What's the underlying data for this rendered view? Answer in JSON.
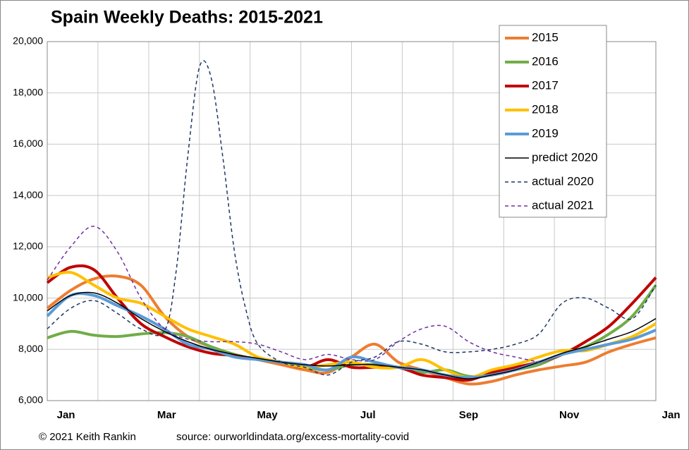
{
  "chart_data": {
    "type": "line",
    "title": "Spain Weekly Deaths: 2015-2021",
    "footer_left": "© 2021 Keith Rankin",
    "footer_right": "source:  ourworldindata.org/excess-mortality-covid",
    "x": [
      0,
      2,
      4,
      6,
      8,
      10,
      12,
      14,
      16,
      18,
      20,
      22,
      24,
      26,
      28,
      30,
      32,
      34,
      36,
      38,
      40,
      42,
      44,
      46,
      48,
      50,
      52
    ],
    "xlim": [
      0,
      52
    ],
    "xticks": [
      {
        "value": 1.6,
        "label": "Jan"
      },
      {
        "value": 10.2,
        "label": "Mar"
      },
      {
        "value": 18.8,
        "label": "May"
      },
      {
        "value": 27.4,
        "label": "Jul"
      },
      {
        "value": 36.0,
        "label": "Sep"
      },
      {
        "value": 44.6,
        "label": "Nov"
      },
      {
        "value": 53.3,
        "label": "Jan"
      }
    ],
    "xgrid": [
      4.33,
      8.67,
      13,
      17.33,
      21.67,
      26,
      30.33,
      34.67,
      39,
      43.33,
      47.67
    ],
    "ylim": [
      6000,
      20000
    ],
    "yticks": [
      {
        "value": 6000,
        "label": "6,000"
      },
      {
        "value": 8000,
        "label": "8,000"
      },
      {
        "value": 10000,
        "label": "10,000"
      },
      {
        "value": 12000,
        "label": "12,000"
      },
      {
        "value": 14000,
        "label": "14,000"
      },
      {
        "value": 16000,
        "label": "16,000"
      },
      {
        "value": 18000,
        "label": "18,000"
      },
      {
        "value": 20000,
        "label": "20,000"
      }
    ],
    "grid": true,
    "legend": "top-right",
    "series": [
      {
        "name": "2015",
        "color": "#ed7d31",
        "width": 4,
        "values": [
          9600,
          10300,
          10750,
          10850,
          10500,
          9300,
          8500,
          8100,
          7800,
          7600,
          7400,
          7200,
          7100,
          7700,
          8200,
          7500,
          7200,
          6900,
          6650,
          6750,
          7000,
          7200,
          7350,
          7500,
          7900,
          8200,
          8450
        ]
      },
      {
        "name": "2016",
        "color": "#70ad47",
        "width": 4,
        "values": [
          8450,
          8700,
          8550,
          8500,
          8600,
          8650,
          8500,
          8100,
          7800,
          7600,
          7500,
          7300,
          7200,
          7400,
          7400,
          7300,
          7100,
          7200,
          6950,
          7000,
          7200,
          7400,
          7800,
          8100,
          8600,
          9300,
          10500
        ]
      },
      {
        "name": "2017",
        "color": "#c00000",
        "width": 4,
        "values": [
          10600,
          11200,
          11100,
          10000,
          9000,
          8500,
          8100,
          7850,
          7750,
          7600,
          7500,
          7300,
          7600,
          7300,
          7300,
          7300,
          7000,
          6900,
          6800,
          7100,
          7300,
          7500,
          7800,
          8300,
          8900,
          9800,
          10800
        ]
      },
      {
        "name": "2018",
        "color": "#ffc000",
        "width": 4,
        "values": [
          10800,
          11000,
          10500,
          10000,
          9800,
          9300,
          8800,
          8500,
          8200,
          7700,
          7500,
          7300,
          7400,
          7500,
          7300,
          7300,
          7600,
          7200,
          6900,
          7200,
          7400,
          7700,
          7950,
          7950,
          8200,
          8500,
          9000
        ]
      },
      {
        "name": "2019",
        "color": "#5b9bd5",
        "width": 4,
        "values": [
          9300,
          10100,
          10100,
          9700,
          9300,
          8800,
          8200,
          8000,
          7700,
          7600,
          7500,
          7400,
          7200,
          7700,
          7500,
          7300,
          7200,
          7000,
          6900,
          7000,
          7200,
          7500,
          7800,
          8000,
          8200,
          8400,
          8750
        ]
      },
      {
        "name": "predict 2020",
        "color": "#000000",
        "width": 1.5,
        "values": [
          9500,
          10100,
          10200,
          9800,
          9200,
          8700,
          8300,
          8000,
          7800,
          7650,
          7500,
          7400,
          7350,
          7400,
          7400,
          7300,
          7200,
          7000,
          6850,
          7000,
          7200,
          7500,
          7850,
          8100,
          8400,
          8700,
          9200
        ]
      },
      {
        "name": "actual 2020",
        "color": "#1f3864",
        "width": 1.5,
        "dash": true,
        "x": [
          0,
          2,
          4,
          6,
          8,
          10,
          11,
          12,
          13,
          14,
          15,
          16,
          17,
          18,
          20,
          22,
          24,
          26,
          28,
          30,
          32,
          34,
          36,
          38,
          40,
          42,
          44,
          46,
          48,
          50,
          52
        ],
        "values": [
          8800,
          9600,
          9900,
          9400,
          8800,
          8700,
          11000,
          15500,
          19000,
          18600,
          15500,
          11800,
          9500,
          8200,
          7500,
          7300,
          7000,
          7500,
          7700,
          8300,
          8200,
          7900,
          7900,
          8000,
          8200,
          8600,
          9800,
          10000,
          9600,
          9200,
          10500
        ]
      },
      {
        "name": "actual 2021",
        "color": "#7030a0",
        "width": 1.5,
        "dash": true,
        "values": [
          10700,
          12000,
          12800,
          11800,
          10000,
          8800,
          8400,
          8300,
          8300,
          8200,
          7900,
          7600,
          7800,
          7600,
          7600,
          8300,
          8800,
          8900,
          8300,
          7900,
          7700,
          7500,
          null,
          null,
          null,
          null,
          null
        ]
      }
    ]
  }
}
